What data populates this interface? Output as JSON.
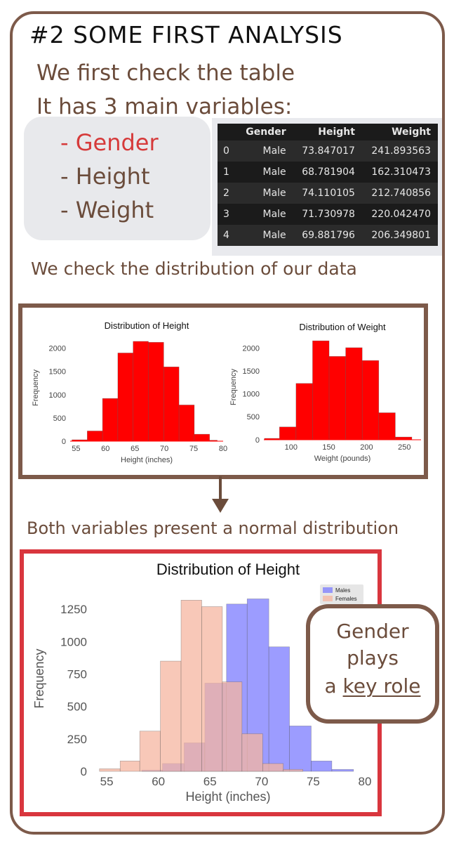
{
  "heading": "#2 SOME FIRST ANALYSIS",
  "intro": {
    "line1": "We first check the table",
    "line2": "It has 3 main variables:"
  },
  "variables": [
    "- Gender",
    "- Height",
    "- Weight"
  ],
  "colors": {
    "brown": "#6b4c3b",
    "red_text": "#d63a3a",
    "bar_red": "#ff0000",
    "males": "#7b7bff",
    "females": "#f6b6a0",
    "overlap": "#b38bc9"
  },
  "dataframe": {
    "columns": [
      "",
      "Gender",
      "Height",
      "Weight"
    ],
    "rows": [
      [
        "0",
        "Male",
        "73.847017",
        "241.893563"
      ],
      [
        "1",
        "Male",
        "68.781904",
        "162.310473"
      ],
      [
        "2",
        "Male",
        "74.110105",
        "212.740856"
      ],
      [
        "3",
        "Male",
        "71.730978",
        "220.042470"
      ],
      [
        "4",
        "Male",
        "69.881796",
        "206.349801"
      ]
    ]
  },
  "distribution_note": "We check the distribution of our data",
  "conclusion": "Both variables present a normal distribution",
  "callout": {
    "line1": "Gender",
    "line2": "plays",
    "line3_prefix": "a ",
    "line3_underlined": "key role"
  },
  "chart_data": [
    {
      "type": "bar",
      "title": "Distribution of Height",
      "xlabel": "Height (inches)",
      "ylabel": "Frequency",
      "xlim": [
        54,
        80
      ],
      "ylim": [
        0,
        2300
      ],
      "xticks": [
        "55",
        "60",
        "65",
        "70",
        "75",
        "80"
      ],
      "yticks": [
        "0",
        "500",
        "1000",
        "1500",
        "2000"
      ],
      "bin_edges": [
        54.3,
        56.9,
        59.5,
        62.1,
        64.7,
        67.3,
        69.9,
        72.5,
        75.1,
        77.7,
        79.0
      ],
      "values": [
        30,
        220,
        920,
        1900,
        2150,
        2130,
        1600,
        780,
        150,
        20
      ],
      "grid": false
    },
    {
      "type": "bar",
      "title": "Distribution of Weight",
      "xlabel": "Weight (pounds)",
      "ylabel": "Frequency",
      "xlim": [
        64,
        272
      ],
      "ylim": [
        0,
        2300
      ],
      "xticks": [
        "100",
        "150",
        "200",
        "250"
      ],
      "yticks": [
        "0",
        "500",
        "1000",
        "1500",
        "2000"
      ],
      "bin_edges": [
        64.7,
        84.7,
        106.6,
        128.5,
        150.4,
        172.3,
        194.2,
        216.1,
        238.0,
        259.9
      ],
      "values": [
        30,
        280,
        1230,
        2160,
        1820,
        2010,
        1730,
        590,
        60
      ],
      "grid": false
    },
    {
      "type": "bar",
      "title": "Distribution of Height",
      "xlabel": "Height (inches)",
      "ylabel": "Frequency",
      "xlim": [
        53.5,
        80
      ],
      "ylim": [
        0,
        1430
      ],
      "xticks": [
        "55",
        "60",
        "65",
        "70",
        "75",
        "80"
      ],
      "yticks": [
        "0",
        "250",
        "500",
        "750",
        "1000",
        "1250"
      ],
      "legend": "top-right",
      "series": [
        {
          "name": "Males",
          "bin_edges": [
            58.4,
            60.4,
            62.5,
            64.5,
            66.6,
            68.6,
            70.7,
            72.7,
            74.8,
            76.8,
            78.9
          ],
          "values": [
            10,
            60,
            220,
            680,
            1290,
            1330,
            960,
            350,
            80,
            15
          ]
        },
        {
          "name": "Females",
          "bin_edges": [
            54.3,
            56.3,
            58.2,
            60.2,
            62.2,
            64.2,
            66.2,
            68.1,
            70.1,
            72.1,
            74.0
          ],
          "values": [
            20,
            80,
            310,
            850,
            1320,
            1270,
            690,
            290,
            60,
            15
          ]
        }
      ],
      "grid": true
    }
  ]
}
